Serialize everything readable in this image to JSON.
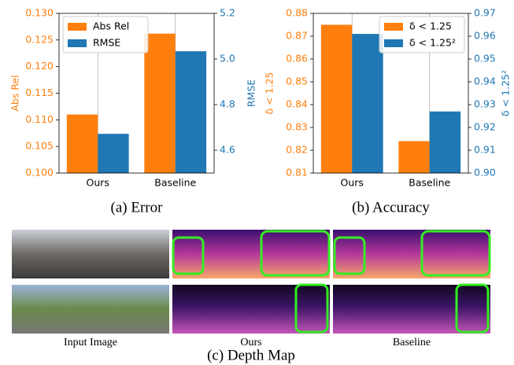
{
  "chart_data": [
    {
      "type": "bar",
      "caption": "(a) Error",
      "categories": [
        "Ours",
        "Baseline"
      ],
      "series": [
        {
          "name": "Abs Rel",
          "color": "#ff7f0e",
          "values": [
            0.111,
            0.1262
          ],
          "axis": "y"
        },
        {
          "name": "RMSE",
          "color": "#1f77b4",
          "values": [
            4.672,
            5.034
          ],
          "axis": "y2"
        }
      ],
      "ylabel": "Abs Rel",
      "y2label": "RMSE",
      "ylim": [
        0.1,
        0.13
      ],
      "yticks": [
        {
          "value": 0.1,
          "label": "0.100"
        },
        0.105,
        {
          "value": 0.11,
          "label": "0.110"
        },
        0.115,
        {
          "value": 0.12,
          "label": "0.120"
        },
        0.125,
        {
          "value": 0.13,
          "label": "0.130"
        }
      ],
      "y2lim": [
        4.5,
        5.2
      ],
      "y2ticks": [
        4.6,
        4.8,
        {
          "value": 5,
          "label": "5.0"
        },
        5.2
      ],
      "grid": "x",
      "legend": "upper left"
    },
    {
      "type": "bar",
      "caption": "(b) Accuracy",
      "categories": [
        "Ours",
        "Baseline"
      ],
      "series": [
        {
          "name": "δ < 1.25",
          "color": "#ff7f0e",
          "values": [
            0.875,
            0.824
          ],
          "axis": "y"
        },
        {
          "name": "δ < 1.25²",
          "color": "#1f77b4",
          "values": [
            0.961,
            0.927
          ],
          "axis": "y2"
        }
      ],
      "ylabel": "δ < 1.25",
      "y2label": "δ < 1.25²",
      "ylim": [
        0.81,
        0.88
      ],
      "yticks": [
        0.81,
        0.82,
        0.83,
        0.84,
        0.85,
        0.86,
        0.87,
        0.88
      ],
      "y2lim": [
        0.9,
        0.97
      ],
      "y2ticks": [
        {
          "value": 0.9,
          "label": "0.90"
        },
        0.91,
        0.92,
        0.93,
        0.94,
        0.95,
        0.96,
        0.97
      ],
      "grid": "x",
      "legend": "upper right"
    }
  ],
  "figure": {
    "image_labels": [
      "Input Image",
      "Ours",
      "Baseline"
    ],
    "caption": "(c) Depth Map"
  }
}
